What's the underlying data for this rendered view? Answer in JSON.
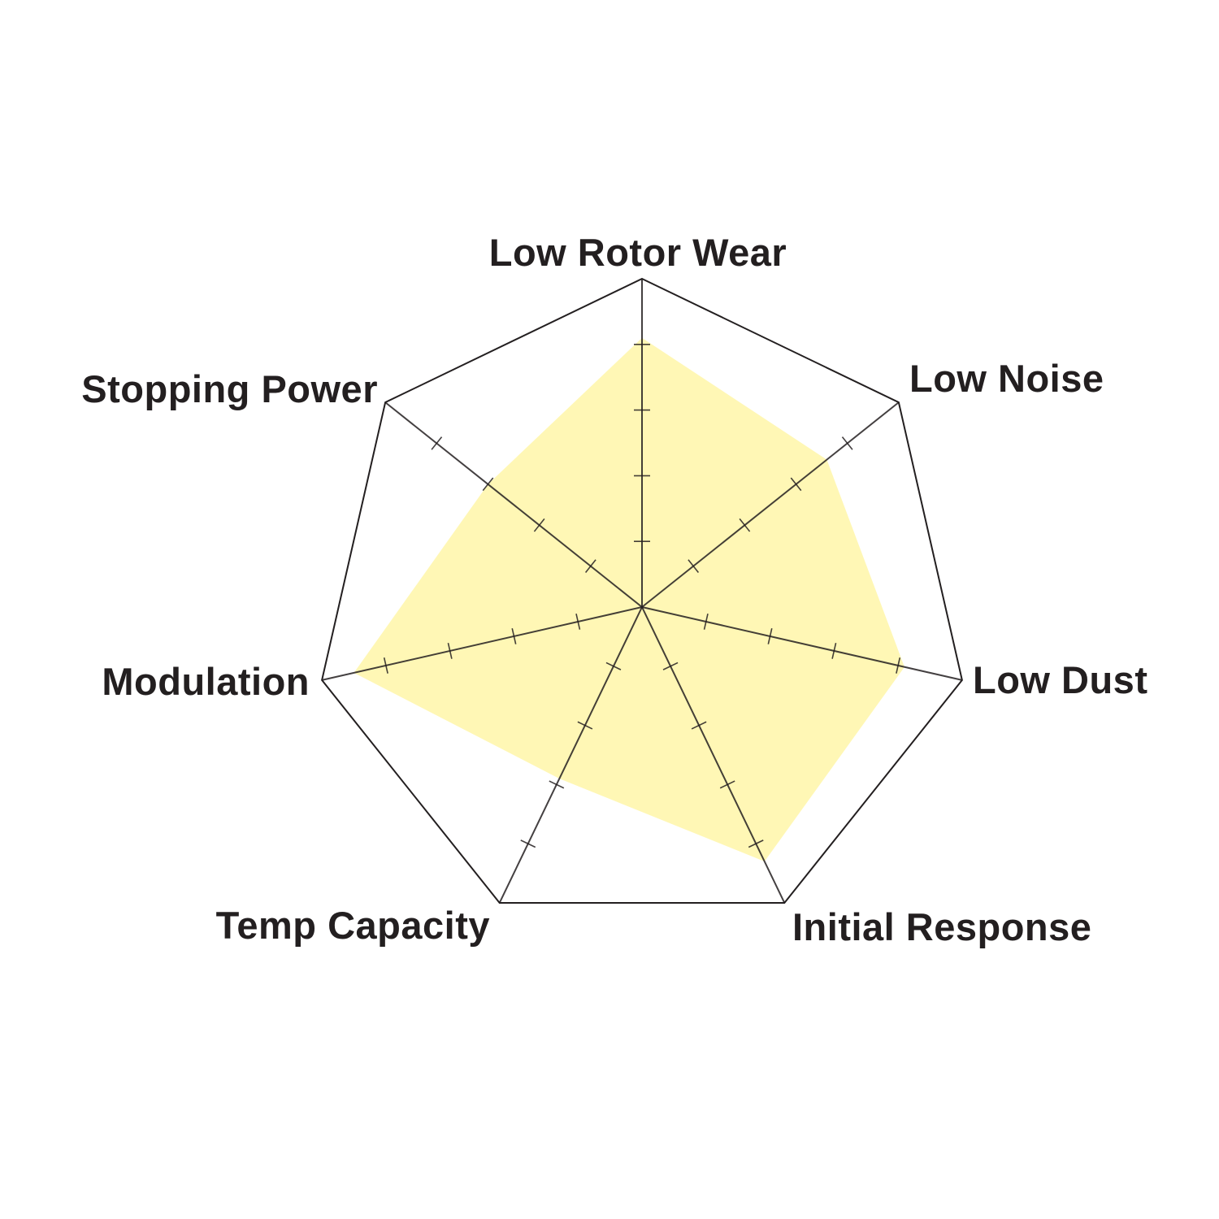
{
  "chart_data": {
    "type": "radar",
    "axes": [
      "Low Rotor Wear",
      "Low Noise",
      "Low Dust",
      "Initial Response",
      "Temp Capacity",
      "Modulation",
      "Stopping Power"
    ],
    "values": [
      4.1,
      3.6,
      4.1,
      4.3,
      2.9,
      4.5,
      3.0
    ],
    "range": [
      0,
      5
    ],
    "ticks": [
      1,
      2,
      3,
      4
    ],
    "grid": "outer heptagon only",
    "legend": "none",
    "colors": {
      "fill": "#fff6a8",
      "outline": "#231f20",
      "label": "#231f20"
    }
  }
}
